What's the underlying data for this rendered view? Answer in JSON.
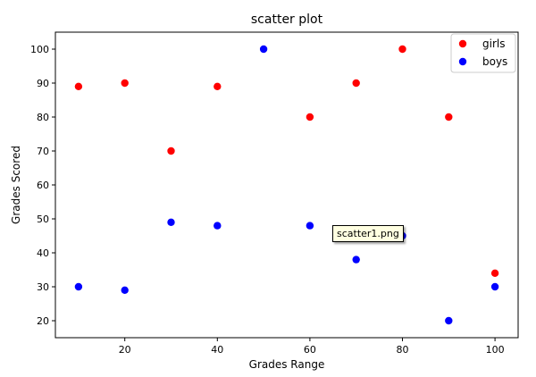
{
  "chart_data": {
    "type": "scatter",
    "title": "scatter plot",
    "xlabel": "Grades Range",
    "ylabel": "Grades Scored",
    "xlim": [
      5,
      105
    ],
    "ylim": [
      15,
      105
    ],
    "xticks": [
      20,
      40,
      60,
      80,
      100
    ],
    "yticks": [
      20,
      30,
      40,
      50,
      60,
      70,
      80,
      90,
      100
    ],
    "grid": false,
    "legend": "top-right",
    "series": [
      {
        "name": "girls",
        "color": "#ff0000",
        "x": [
          10,
          20,
          30,
          40,
          60,
          70,
          80,
          90,
          100
        ],
        "y": [
          89,
          90,
          70,
          89,
          80,
          90,
          100,
          80,
          34
        ]
      },
      {
        "name": "boys",
        "color": "#0000ff",
        "x": [
          10,
          20,
          30,
          40,
          50,
          60,
          70,
          80,
          90,
          100
        ],
        "y": [
          30,
          29,
          49,
          48,
          100,
          48,
          38,
          45,
          20,
          30
        ]
      }
    ]
  },
  "tooltip": {
    "text": "scatter1.png"
  }
}
